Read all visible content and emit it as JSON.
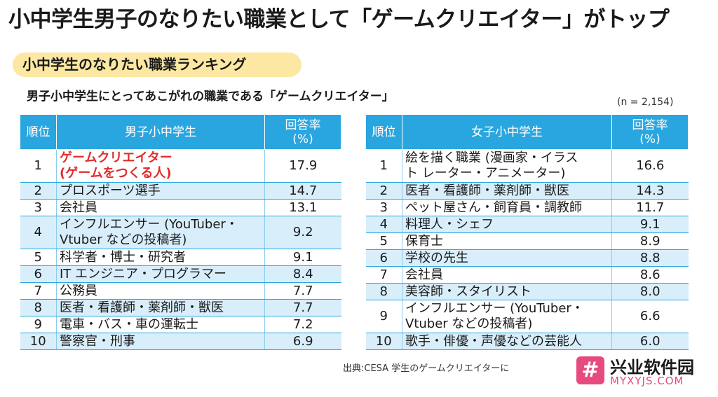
{
  "headline": {
    "pre": "小中学生男子のなりたい職業として",
    "highlight": "「ゲームクリエイター」",
    "post": "がトップ"
  },
  "section_pill": "小中学生のなりたい職業ランキング",
  "subtitle": "男子小中学生にとってあこがれの職業である「ゲームクリエイター」",
  "sample_size": "(n = 2,154)",
  "boys": {
    "headers": {
      "rank": "順位",
      "group": "男子小中学生",
      "rate_line1": "回答率",
      "rate_line2": "(%)"
    },
    "rows": [
      {
        "rank": "1",
        "line1": "ゲームクリエイター",
        "line2": "(ゲームをつくる人)",
        "value": "17.9"
      },
      {
        "rank": "2",
        "line1": "プロスポーツ選手",
        "value": "14.7"
      },
      {
        "rank": "3",
        "line1": "会社員",
        "value": "13.1"
      },
      {
        "rank": "4",
        "line1": "インフルエンサー (YouTuber・",
        "line2": "Vtuber などの投稿者)",
        "value": "9.2"
      },
      {
        "rank": "5",
        "line1": "科学者・博士・研究者",
        "value": "9.1"
      },
      {
        "rank": "6",
        "line1": "IT エンジニア・プログラマー",
        "value": "8.4"
      },
      {
        "rank": "7",
        "line1": "公務員",
        "value": "7.7"
      },
      {
        "rank": "8",
        "line1": "医者・看護師・薬剤師・獣医",
        "value": "7.7"
      },
      {
        "rank": "9",
        "line1": "電車・バス・車の運転士",
        "value": "7.2"
      },
      {
        "rank": "10",
        "line1": "警察官・刑事",
        "value": "6.9"
      }
    ]
  },
  "girls": {
    "headers": {
      "rank": "順位",
      "group": "女子小中学生",
      "rate_line1": "回答率",
      "rate_line2": "(%)"
    },
    "rows": [
      {
        "rank": "1",
        "line1": "絵を描く職業 (漫画家・イラス",
        "line2": "ト レーター・アニメーター)",
        "value": "16.6"
      },
      {
        "rank": "2",
        "line1": "医者・看護師・薬剤師・獣医",
        "value": "14.3"
      },
      {
        "rank": "3",
        "line1": "ペット屋さん・飼育員・調教師",
        "value": "11.7"
      },
      {
        "rank": "4",
        "line1": "料理人・シェフ",
        "value": "9.1"
      },
      {
        "rank": "5",
        "line1": "保育士",
        "value": "8.9"
      },
      {
        "rank": "6",
        "line1": "学校の先生",
        "value": "8.8"
      },
      {
        "rank": "7",
        "line1": "会社員",
        "value": "8.6"
      },
      {
        "rank": "8",
        "line1": "美容師・スタイリスト",
        "value": "8.0"
      },
      {
        "rank": "9",
        "line1": "インフルエンサー (YouTuber・",
        "line2": "Vtuber などの投稿者)",
        "value": "6.6"
      },
      {
        "rank": "10",
        "line1": "歌手・俳優・声優などの芸能人",
        "value": "6.0"
      }
    ]
  },
  "source": "出典:CESA 学生のゲームクリエイターに",
  "watermark": {
    "logo_glyph": "#",
    "name": "兴业软件园",
    "url": "MYXYJS.COM"
  },
  "colors": {
    "header_blue": "#29a6df",
    "row_alt": "#d9eefb",
    "pill": "#fce8a2",
    "highlight_red": "#e32b2b",
    "watermark_pink": "#e64a7f"
  }
}
